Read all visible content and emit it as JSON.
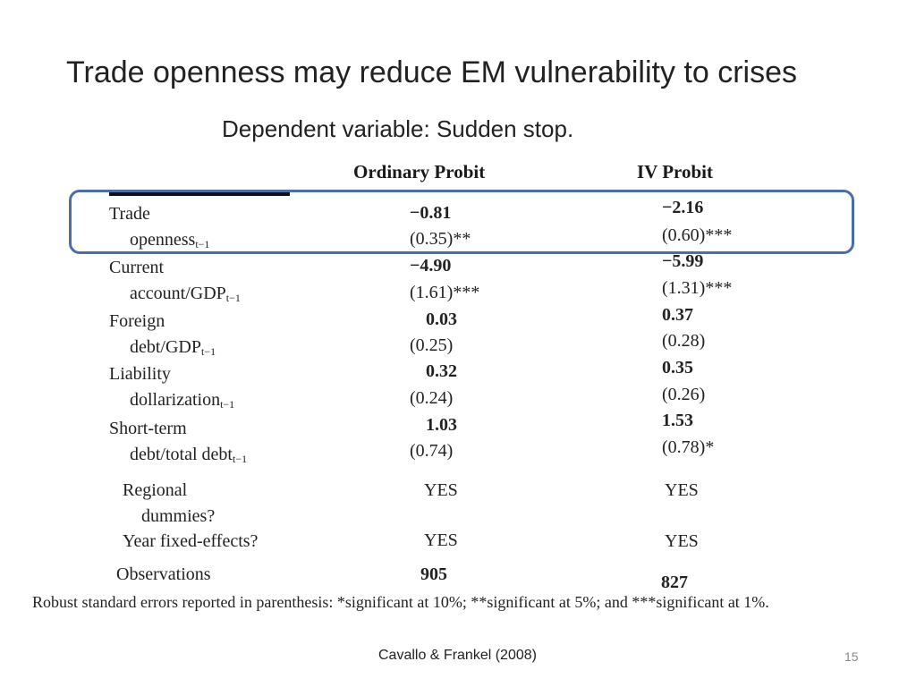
{
  "title": "Trade openness may reduce EM vulnerability to crises",
  "subtitle": "Dependent variable:  Sudden stop.",
  "columns": {
    "ordinary": "Ordinary Probit",
    "iv": "IV Probit"
  },
  "rows": [
    {
      "label1": "Trade",
      "label2": "openness",
      "sub": "t−1",
      "ord_coef": "−0.81",
      "ord_se": "(0.35)**",
      "iv_coef": "−2.16",
      "iv_se": "(0.60)***"
    },
    {
      "label1": "Current",
      "label2": "account/GDP",
      "sub": "t−1",
      "ord_coef": "−4.90",
      "ord_se": "(1.61)***",
      "iv_coef": "−5.99",
      "iv_se": "(1.31)***"
    },
    {
      "label1": "Foreign",
      "label2": "debt/GDP",
      "sub": "t−1",
      "ord_coef": "0.03",
      "ord_se": "(0.25)",
      "iv_coef": "0.37",
      "iv_se": "(0.28)"
    },
    {
      "label1": "Liability",
      "label2": "dollarization",
      "sub": "t−1",
      "ord_coef": "0.32",
      "ord_se": "(0.24)",
      "iv_coef": "0.35",
      "iv_se": "(0.26)"
    },
    {
      "label1": "Short-term",
      "label2": "debt/total debt",
      "sub": "t−1",
      "ord_coef": "1.03",
      "ord_se": "(0.74)",
      "iv_coef": "1.53",
      "iv_se": "(0.78)*"
    }
  ],
  "extra_rows": [
    {
      "label1": "Regional",
      "label2": "dummies?",
      "ord": "YES",
      "iv": "YES"
    },
    {
      "label1": "Year fixed-effects?",
      "ord": "YES",
      "iv": "YES"
    },
    {
      "label1": "Observations",
      "ord": "905",
      "iv": "827"
    }
  ],
  "footnote": "Robust standard errors reported in parenthesis: *significant at 10%; **significant at 5%; and ***significant at 1%.",
  "citation": "Cavallo & Frankel (2008)",
  "page_number": "15",
  "colors": {
    "highlight_border": "#4a6fa6",
    "text": "#222222"
  }
}
